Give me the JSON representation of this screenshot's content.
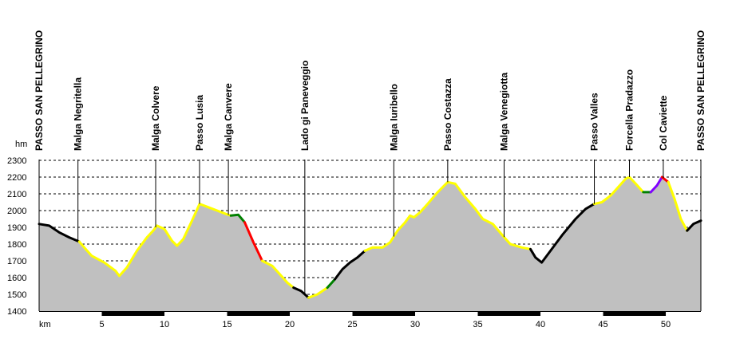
{
  "chart_data": {
    "type": "area",
    "ylabel": "hm",
    "xlabel": "km",
    "xlim": [
      0,
      52.8
    ],
    "ylim": [
      1400,
      2300
    ],
    "yticks": [
      1400,
      1500,
      1600,
      1700,
      1800,
      1900,
      2000,
      2100,
      2200,
      2300
    ],
    "xticks": [
      5,
      10,
      15,
      20,
      25,
      30,
      35,
      40,
      45,
      50
    ],
    "grid": true,
    "waypoints": [
      {
        "name": "PASSO SAN PELLEGRINO",
        "km": 0
      },
      {
        "name": "Malga Negritella",
        "km": 3.1
      },
      {
        "name": "Malga Colvere",
        "km": 9.3
      },
      {
        "name": "Passo Lusia",
        "km": 12.8
      },
      {
        "name": "Malga Canvere",
        "km": 15.1
      },
      {
        "name": "Lado gi Paneveggio",
        "km": 21.2
      },
      {
        "name": "Malga Iuribello",
        "km": 28.3
      },
      {
        "name": "Passo Costazza",
        "km": 32.6
      },
      {
        "name": "Malga Venegiotta",
        "km": 37.1
      },
      {
        "name": "Passo Valles",
        "km": 44.3
      },
      {
        "name": "Forcella Pradazzo",
        "km": 47.1
      },
      {
        "name": "Col Caviette",
        "km": 49.8
      },
      {
        "name": "PASSO SAN PELLEGRINO",
        "km": 52.8
      }
    ],
    "profile": [
      [
        0,
        1920
      ],
      [
        0.8,
        1910
      ],
      [
        1.6,
        1870
      ],
      [
        2.4,
        1840
      ],
      [
        3.2,
        1815
      ],
      [
        3.6,
        1780
      ],
      [
        4.2,
        1730
      ],
      [
        5.2,
        1690
      ],
      [
        6.1,
        1640
      ],
      [
        6.4,
        1610
      ],
      [
        7.0,
        1660
      ],
      [
        7.8,
        1760
      ],
      [
        8.6,
        1840
      ],
      [
        9.1,
        1880
      ],
      [
        9.4,
        1910
      ],
      [
        10.0,
        1890
      ],
      [
        10.6,
        1820
      ],
      [
        11.0,
        1790
      ],
      [
        11.5,
        1830
      ],
      [
        12.2,
        1940
      ],
      [
        12.8,
        2040
      ],
      [
        13.5,
        2020
      ],
      [
        14.2,
        2000
      ],
      [
        14.9,
        1980
      ],
      [
        15.3,
        1970
      ],
      [
        15.9,
        1975
      ],
      [
        16.4,
        1930
      ],
      [
        17.1,
        1810
      ],
      [
        17.8,
        1700
      ],
      [
        18.6,
        1670
      ],
      [
        19.2,
        1620
      ],
      [
        19.8,
        1570
      ],
      [
        20.3,
        1540
      ],
      [
        20.9,
        1520
      ],
      [
        21.2,
        1500
      ],
      [
        21.5,
        1480
      ],
      [
        22.2,
        1500
      ],
      [
        23.0,
        1540
      ],
      [
        23.6,
        1590
      ],
      [
        24.2,
        1650
      ],
      [
        24.8,
        1690
      ],
      [
        25.4,
        1720
      ],
      [
        26.0,
        1760
      ],
      [
        26.6,
        1780
      ],
      [
        27.4,
        1780
      ],
      [
        28.0,
        1810
      ],
      [
        28.6,
        1880
      ],
      [
        29.2,
        1930
      ],
      [
        29.6,
        1970
      ],
      [
        29.9,
        1960
      ],
      [
        30.4,
        1990
      ],
      [
        31.0,
        2040
      ],
      [
        31.8,
        2110
      ],
      [
        32.6,
        2170
      ],
      [
        33.2,
        2160
      ],
      [
        34.0,
        2080
      ],
      [
        34.8,
        2010
      ],
      [
        35.4,
        1950
      ],
      [
        36.2,
        1920
      ],
      [
        37.0,
        1850
      ],
      [
        37.6,
        1800
      ],
      [
        38.5,
        1780
      ],
      [
        39.2,
        1770
      ],
      [
        39.6,
        1720
      ],
      [
        40.1,
        1690
      ],
      [
        40.8,
        1760
      ],
      [
        41.8,
        1860
      ],
      [
        42.8,
        1950
      ],
      [
        43.6,
        2010
      ],
      [
        44.3,
        2040
      ],
      [
        44.9,
        2050
      ],
      [
        45.6,
        2090
      ],
      [
        46.2,
        2140
      ],
      [
        46.8,
        2190
      ],
      [
        47.1,
        2200
      ],
      [
        47.6,
        2160
      ],
      [
        48.2,
        2110
      ],
      [
        48.8,
        2110
      ],
      [
        49.3,
        2150
      ],
      [
        49.7,
        2200
      ],
      [
        50.2,
        2170
      ],
      [
        50.7,
        2070
      ],
      [
        51.2,
        1950
      ],
      [
        51.7,
        1880
      ],
      [
        52.2,
        1920
      ],
      [
        52.8,
        1940
      ]
    ],
    "segments": [
      {
        "from": 0,
        "to": 3.2,
        "color": "#000000"
      },
      {
        "from": 3.2,
        "to": 15.3,
        "color": "#ffff00"
      },
      {
        "from": 15.3,
        "to": 16.4,
        "color": "#008000"
      },
      {
        "from": 16.4,
        "to": 17.8,
        "color": "#ff0000"
      },
      {
        "from": 17.8,
        "to": 20.3,
        "color": "#ffff00"
      },
      {
        "from": 20.3,
        "to": 21.5,
        "color": "#000000"
      },
      {
        "from": 21.5,
        "to": 23.0,
        "color": "#ffff00"
      },
      {
        "from": 23.0,
        "to": 23.6,
        "color": "#008000"
      },
      {
        "from": 23.6,
        "to": 26.0,
        "color": "#000000"
      },
      {
        "from": 26.0,
        "to": 39.2,
        "color": "#ffff00"
      },
      {
        "from": 39.2,
        "to": 44.3,
        "color": "#000000"
      },
      {
        "from": 44.3,
        "to": 48.2,
        "color": "#ffff00"
      },
      {
        "from": 48.2,
        "to": 48.8,
        "color": "#008000"
      },
      {
        "from": 48.8,
        "to": 49.7,
        "color": "#8000ff"
      },
      {
        "from": 49.7,
        "to": 50.2,
        "color": "#ff0000"
      },
      {
        "from": 50.2,
        "to": 51.7,
        "color": "#ffff00"
      },
      {
        "from": 51.7,
        "to": 52.8,
        "color": "#000000"
      }
    ],
    "colors": {
      "fill": "#c0c0c0",
      "grid": "#000000",
      "waypoint_line": "#000000",
      "km_band": "#000000"
    }
  }
}
